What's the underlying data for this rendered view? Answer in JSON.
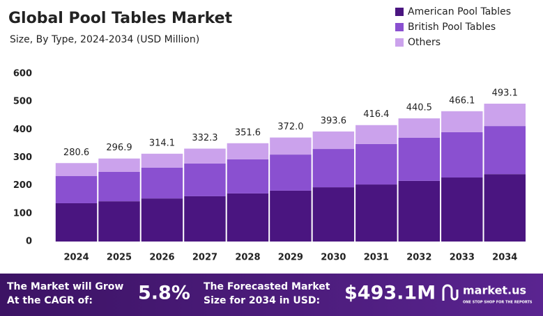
{
  "chart_data": {
    "type": "stacked_bar",
    "title": "Global Pool Tables Market",
    "subtitle": "Size, By Type, 2024-2034 (USD Million)",
    "categories": [
      "2024",
      "2025",
      "2026",
      "2027",
      "2028",
      "2029",
      "2030",
      "2031",
      "2032",
      "2033",
      "2034"
    ],
    "series": [
      {
        "name": "American Pool Tables",
        "color": "#4a1580",
        "values": [
          137,
          144,
          154,
          162,
          172,
          182,
          194,
          204,
          217,
          229,
          241
        ]
      },
      {
        "name": "British Pool Tables",
        "color": "#8a50d0",
        "values": [
          97,
          105,
          110,
          117,
          122,
          129,
          137,
          145,
          154,
          162,
          172
        ]
      },
      {
        "name": "Others",
        "color": "#cba2ec",
        "values": [
          46.6,
          47.9,
          50.1,
          53.3,
          57.6,
          61.0,
          62.6,
          67.4,
          69.5,
          75.1,
          80.1
        ]
      }
    ],
    "totals": [
      280.6,
      296.9,
      314.1,
      332.3,
      351.6,
      {
        "value": 372.0,
        "label": "372.0"
      },
      393.6,
      416.4,
      440.5,
      466.1,
      493.1
    ],
    "ylim": [
      0,
      600
    ],
    "yticks": [
      0,
      100,
      200,
      300,
      400,
      500,
      600
    ],
    "grid": false,
    "legend": "top-right"
  },
  "footer": {
    "cagr_text": [
      "The Market will Grow",
      "At the CAGR of:"
    ],
    "cagr_value": "5.8%",
    "forecast_text": [
      "The Forecasted Market",
      "Size for 2034 in USD:"
    ],
    "forecast_value": "$493.1M",
    "brand": "market.us",
    "tagline": "ONE STOP SHOP FOR THE REPORTS"
  }
}
